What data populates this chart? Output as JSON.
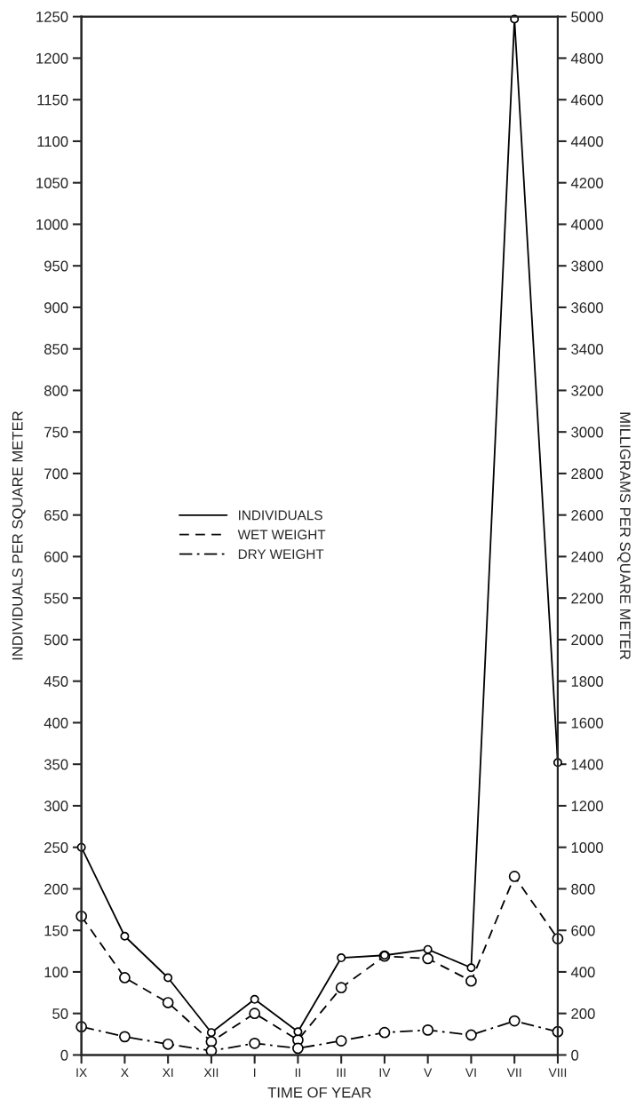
{
  "chart_data": {
    "type": "line",
    "xlabel": "TIME OF YEAR",
    "ylabel": "INDIVIDUALS PER SQUARE METER",
    "y2label": "MILLIGRAMS PER SQUARE METER",
    "categories": [
      "IX",
      "X",
      "XI",
      "XII",
      "I",
      "II",
      "III",
      "IV",
      "V",
      "VI",
      "VII",
      "VIII"
    ],
    "series": [
      {
        "name": "INDIVIDUALS",
        "color": "#000000",
        "line_style": "solid",
        "values": [
          250,
          143,
          93,
          27,
          67,
          28,
          117,
          120,
          127,
          105,
          1247,
          352
        ]
      },
      {
        "name": "WET WEIGHT",
        "color": "#000000",
        "line_style": "dashed",
        "axis": "y2",
        "values": [
          668,
          372,
          252,
          64,
          200,
          72,
          324,
          476,
          464,
          356,
          860,
          560
        ]
      },
      {
        "name": "DRY WEIGHT",
        "color": "#000000",
        "line_style": "dashdot",
        "axis": "y2",
        "values": [
          136,
          88,
          52,
          20,
          56,
          32,
          68,
          108,
          120,
          96,
          164,
          112
        ]
      }
    ],
    "ylim": [
      0,
      1250
    ],
    "yticks": [
      0,
      50,
      100,
      150,
      200,
      250,
      300,
      350,
      400,
      450,
      500,
      550,
      600,
      650,
      700,
      750,
      800,
      850,
      900,
      950,
      1000,
      1050,
      1100,
      1150,
      1200,
      1250
    ],
    "y2lim": [
      0,
      5000
    ],
    "y2ticks": [
      0,
      200,
      400,
      600,
      800,
      1000,
      1200,
      1400,
      1600,
      1800,
      2000,
      2200,
      2400,
      2600,
      2800,
      3000,
      3200,
      3400,
      3600,
      3800,
      4000,
      4200,
      4400,
      4600,
      4800,
      5000
    ],
    "marker": "circle",
    "legend": "center left",
    "grid": false
  }
}
